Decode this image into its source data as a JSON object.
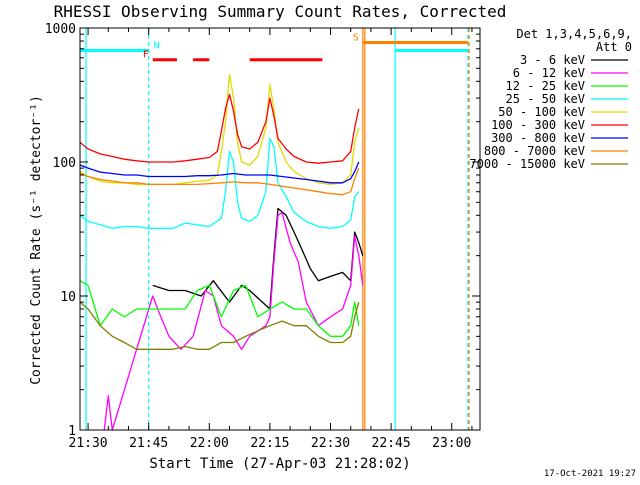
{
  "chart_data": {
    "type": "line",
    "title": "RHESSI Observing Summary Count Rates, Corrected",
    "xlabel": "Start Time (27-Apr-03 21:28:02)",
    "ylabel": "Corrected Count Rate (s⁻¹ detector⁻¹)",
    "yscale": "log",
    "ylim": [
      1,
      1000
    ],
    "xlim_minutes": [
      -2,
      97
    ],
    "x_ticks": [
      {
        "minute": 0,
        "label": "21:30"
      },
      {
        "minute": 15,
        "label": "21:45"
      },
      {
        "minute": 30,
        "label": "22:00"
      },
      {
        "minute": 45,
        "label": "22:15"
      },
      {
        "minute": 60,
        "label": "22:30"
      },
      {
        "minute": 75,
        "label": "22:45"
      },
      {
        "minute": 90,
        "label": "23:00"
      }
    ],
    "y_ticks": [
      {
        "value": 1,
        "label": "1"
      },
      {
        "value": 10,
        "label": "10"
      },
      {
        "value": 100,
        "label": "100"
      },
      {
        "value": 1000,
        "label": "1000"
      }
    ],
    "legend_header": [
      "Det 1,3,4,5,6,9,",
      "Att 0"
    ],
    "legend_position": "right",
    "series": [
      {
        "name": "3 - 6 keV",
        "color": "#000000",
        "points": [
          [
            -2,
            null
          ],
          [
            0,
            null
          ],
          [
            8,
            null
          ],
          [
            14,
            null
          ],
          [
            16,
            12
          ],
          [
            20,
            11
          ],
          [
            24,
            11
          ],
          [
            28,
            10
          ],
          [
            31,
            13
          ],
          [
            35,
            9
          ],
          [
            38,
            12
          ],
          [
            40,
            11
          ],
          [
            45,
            8
          ],
          [
            46,
            20
          ],
          [
            47,
            45
          ],
          [
            49,
            40
          ],
          [
            51,
            30
          ],
          [
            53,
            22
          ],
          [
            55,
            16
          ],
          [
            57,
            13
          ],
          [
            60,
            14
          ],
          [
            63,
            15
          ],
          [
            65,
            13
          ],
          [
            66,
            30
          ],
          [
            67,
            25
          ],
          [
            68,
            20
          ]
        ]
      },
      {
        "name": "6 - 12 keV",
        "color": "#ff00ff",
        "points": [
          [
            4,
            1
          ],
          [
            5,
            1.8
          ],
          [
            6,
            1
          ],
          [
            16,
            10
          ],
          [
            18,
            7
          ],
          [
            20,
            5
          ],
          [
            23,
            4
          ],
          [
            26,
            5
          ],
          [
            29,
            11
          ],
          [
            31,
            10
          ],
          [
            33,
            6
          ],
          [
            36,
            5
          ],
          [
            38,
            4
          ],
          [
            40,
            5
          ],
          [
            44,
            6
          ],
          [
            45,
            7
          ],
          [
            46,
            18
          ],
          [
            47,
            40
          ],
          [
            48,
            42
          ],
          [
            50,
            25
          ],
          [
            52,
            18
          ],
          [
            54,
            9
          ],
          [
            57,
            6
          ],
          [
            60,
            7
          ],
          [
            63,
            8
          ],
          [
            65,
            12
          ],
          [
            66,
            28
          ],
          [
            67,
            20
          ],
          [
            68,
            12
          ]
        ]
      },
      {
        "name": "12 - 25 keV",
        "color": "#00ff00",
        "points": [
          [
            -2,
            13
          ],
          [
            0,
            12
          ],
          [
            3,
            6
          ],
          [
            6,
            8
          ],
          [
            9,
            7
          ],
          [
            12,
            8
          ],
          [
            15,
            8
          ],
          [
            18,
            8
          ],
          [
            21,
            8
          ],
          [
            24,
            8
          ],
          [
            27,
            11
          ],
          [
            30,
            12
          ],
          [
            33,
            7
          ],
          [
            36,
            11
          ],
          [
            39,
            12
          ],
          [
            42,
            7
          ],
          [
            45,
            8
          ],
          [
            48,
            9
          ],
          [
            51,
            8
          ],
          [
            54,
            8
          ],
          [
            57,
            6
          ],
          [
            60,
            5
          ],
          [
            63,
            5
          ],
          [
            65,
            6
          ],
          [
            66,
            9
          ],
          [
            67,
            6
          ]
        ]
      },
      {
        "name": "25 - 50 keV",
        "color": "#00ffff",
        "points": [
          [
            -2,
            40
          ],
          [
            0,
            36
          ],
          [
            3,
            34
          ],
          [
            6,
            32
          ],
          [
            9,
            33
          ],
          [
            12,
            33
          ],
          [
            15,
            32
          ],
          [
            18,
            32
          ],
          [
            21,
            32
          ],
          [
            24,
            35
          ],
          [
            27,
            34
          ],
          [
            30,
            33
          ],
          [
            33,
            38
          ],
          [
            34,
            60
          ],
          [
            35,
            120
          ],
          [
            36,
            100
          ],
          [
            37,
            50
          ],
          [
            38,
            38
          ],
          [
            40,
            36
          ],
          [
            42,
            40
          ],
          [
            44,
            60
          ],
          [
            45,
            150
          ],
          [
            46,
            130
          ],
          [
            47,
            70
          ],
          [
            49,
            55
          ],
          [
            51,
            42
          ],
          [
            54,
            36
          ],
          [
            57,
            33
          ],
          [
            60,
            32
          ],
          [
            63,
            33
          ],
          [
            65,
            37
          ],
          [
            66,
            55
          ],
          [
            67,
            60
          ]
        ]
      },
      {
        "name": "50 - 100 keV",
        "color": "#dddd00",
        "points": [
          [
            -2,
            85
          ],
          [
            0,
            78
          ],
          [
            3,
            72
          ],
          [
            6,
            70
          ],
          [
            9,
            70
          ],
          [
            12,
            68
          ],
          [
            15,
            68
          ],
          [
            18,
            68
          ],
          [
            21,
            68
          ],
          [
            24,
            70
          ],
          [
            27,
            72
          ],
          [
            30,
            73
          ],
          [
            32,
            80
          ],
          [
            33,
            120
          ],
          [
            34,
            200
          ],
          [
            35,
            450
          ],
          [
            36,
            300
          ],
          [
            37,
            140
          ],
          [
            38,
            100
          ],
          [
            40,
            95
          ],
          [
            42,
            110
          ],
          [
            44,
            180
          ],
          [
            45,
            380
          ],
          [
            46,
            250
          ],
          [
            47,
            140
          ],
          [
            49,
            100
          ],
          [
            51,
            85
          ],
          [
            54,
            75
          ],
          [
            57,
            70
          ],
          [
            60,
            68
          ],
          [
            63,
            70
          ],
          [
            65,
            80
          ],
          [
            66,
            140
          ],
          [
            67,
            180
          ]
        ]
      },
      {
        "name": "100 - 300 keV",
        "color": "#ff0000",
        "points": [
          [
            -2,
            140
          ],
          [
            0,
            125
          ],
          [
            3,
            115
          ],
          [
            6,
            110
          ],
          [
            9,
            105
          ],
          [
            12,
            102
          ],
          [
            15,
            100
          ],
          [
            18,
            100
          ],
          [
            21,
            100
          ],
          [
            24,
            102
          ],
          [
            27,
            105
          ],
          [
            30,
            108
          ],
          [
            32,
            120
          ],
          [
            33,
            170
          ],
          [
            34,
            250
          ],
          [
            35,
            320
          ],
          [
            36,
            240
          ],
          [
            37,
            160
          ],
          [
            38,
            130
          ],
          [
            40,
            125
          ],
          [
            42,
            140
          ],
          [
            44,
            200
          ],
          [
            45,
            300
          ],
          [
            46,
            220
          ],
          [
            47,
            150
          ],
          [
            49,
            125
          ],
          [
            51,
            110
          ],
          [
            54,
            100
          ],
          [
            57,
            98
          ],
          [
            60,
            100
          ],
          [
            63,
            102
          ],
          [
            65,
            120
          ],
          [
            66,
            180
          ],
          [
            67,
            250
          ]
        ]
      },
      {
        "name": "300 - 800 keV",
        "color": "#0000ff",
        "points": [
          [
            -2,
            95
          ],
          [
            0,
            90
          ],
          [
            3,
            84
          ],
          [
            6,
            82
          ],
          [
            9,
            80
          ],
          [
            12,
            80
          ],
          [
            15,
            78
          ],
          [
            18,
            78
          ],
          [
            21,
            78
          ],
          [
            24,
            78
          ],
          [
            27,
            79
          ],
          [
            30,
            79
          ],
          [
            33,
            80
          ],
          [
            36,
            82
          ],
          [
            39,
            80
          ],
          [
            42,
            80
          ],
          [
            45,
            80
          ],
          [
            48,
            78
          ],
          [
            51,
            76
          ],
          [
            54,
            74
          ],
          [
            57,
            72
          ],
          [
            60,
            70
          ],
          [
            63,
            70
          ],
          [
            65,
            75
          ],
          [
            66,
            85
          ],
          [
            67,
            100
          ]
        ]
      },
      {
        "name": "800 - 7000 keV",
        "color": "#ff8000",
        "points": [
          [
            -2,
            82
          ],
          [
            0,
            78
          ],
          [
            3,
            74
          ],
          [
            6,
            72
          ],
          [
            9,
            70
          ],
          [
            12,
            70
          ],
          [
            15,
            68
          ],
          [
            18,
            68
          ],
          [
            21,
            68
          ],
          [
            24,
            68
          ],
          [
            27,
            68
          ],
          [
            30,
            69
          ],
          [
            33,
            70
          ],
          [
            36,
            71
          ],
          [
            39,
            70
          ],
          [
            42,
            70
          ],
          [
            45,
            68
          ],
          [
            48,
            66
          ],
          [
            51,
            64
          ],
          [
            54,
            62
          ],
          [
            57,
            60
          ],
          [
            60,
            58
          ],
          [
            63,
            57
          ],
          [
            65,
            60
          ],
          [
            66,
            75
          ],
          [
            67,
            90
          ]
        ]
      },
      {
        "name": "7000 - 15000 keV",
        "color": "#808000",
        "points": [
          [
            -2,
            9
          ],
          [
            0,
            8
          ],
          [
            3,
            6
          ],
          [
            6,
            5
          ],
          [
            9,
            4.5
          ],
          [
            12,
            4
          ],
          [
            15,
            4
          ],
          [
            18,
            4
          ],
          [
            21,
            4
          ],
          [
            24,
            4.2
          ],
          [
            27,
            4
          ],
          [
            30,
            4
          ],
          [
            33,
            4.5
          ],
          [
            36,
            4.5
          ],
          [
            39,
            5
          ],
          [
            42,
            5.5
          ],
          [
            45,
            6
          ],
          [
            48,
            6.5
          ],
          [
            51,
            6
          ],
          [
            54,
            6
          ],
          [
            57,
            5
          ],
          [
            60,
            4.5
          ],
          [
            63,
            4.5
          ],
          [
            65,
            5
          ],
          [
            66,
            7
          ],
          [
            67,
            9
          ]
        ]
      }
    ],
    "flag_bars": [
      {
        "label": "N",
        "color": "#00ffff",
        "y": 680,
        "segments": [
          [
            -2,
            15
          ]
        ]
      },
      {
        "label": "F",
        "color": "#ff0000",
        "y": 580,
        "segments": [
          [
            16,
            22
          ],
          [
            26,
            30
          ],
          [
            40,
            58
          ]
        ]
      },
      {
        "label": "S",
        "color": "#ff8000",
        "y": 780,
        "segments": [
          [
            68,
            94
          ]
        ]
      },
      {
        "label": "",
        "color": "#00ffff",
        "y": 680,
        "segments": [
          [
            76,
            94
          ]
        ]
      }
    ],
    "vertical_markers": [
      {
        "color": "#00ffff",
        "minute": -0.5,
        "style": "solid"
      },
      {
        "color": "#00ffff",
        "minute": 15,
        "style": "dashed"
      },
      {
        "color": "#ff8000",
        "minute": 68,
        "style": "solid"
      },
      {
        "color": "#ff8000",
        "minute": 68.5,
        "style": "solid"
      },
      {
        "color": "#00ffff",
        "minute": 76,
        "style": "solid"
      },
      {
        "color": "#00ffff",
        "minute": 94,
        "style": "dashed"
      },
      {
        "color": "#ff8000",
        "minute": 94.3,
        "style": "dashed"
      }
    ]
  },
  "footer": {
    "timestamp": "17-Oct-2021 19:27"
  }
}
